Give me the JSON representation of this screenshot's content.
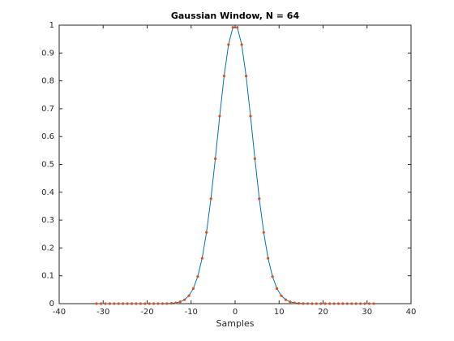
{
  "chart_data": {
    "type": "line",
    "title": "Gaussian Window, N = 64",
    "xlabel": "Samples",
    "x": [
      -31.5,
      -30.5,
      -29.5,
      -28.5,
      -27.5,
      -26.5,
      -25.5,
      -24.5,
      -23.5,
      -22.5,
      -21.5,
      -20.5,
      -19.5,
      -18.5,
      -17.5,
      -16.5,
      -15.5,
      -14.5,
      -13.5,
      -12.5,
      -11.5,
      -10.5,
      -9.5,
      -8.5,
      -7.5,
      -6.5,
      -5.5,
      -4.5,
      -3.5,
      -2.5,
      -1.5,
      -0.5,
      0.5,
      1.5,
      2.5,
      3.5,
      4.5,
      5.5,
      6.5,
      7.5,
      8.5,
      9.5,
      10.5,
      11.5,
      12.5,
      13.5,
      14.5,
      15.5,
      16.5,
      17.5,
      18.5,
      19.5,
      20.5,
      21.5,
      22.5,
      23.5,
      24.5,
      25.5,
      26.5,
      27.5,
      28.5,
      29.5,
      30.5,
      31.5
    ],
    "series": [
      {
        "color": "#0072bd",
        "marker_color": "#d95319",
        "values": [
          0,
          0,
          0,
          0,
          0,
          0,
          0,
          0,
          0,
          0,
          0,
          0,
          0,
          0,
          0.0001,
          0.0002,
          0.0004,
          0.0011,
          0.0028,
          0.0065,
          0.0141,
          0.0286,
          0.0544,
          0.0973,
          0.163,
          0.256,
          0.377,
          0.5204,
          0.6736,
          0.8174,
          0.93,
          0.992,
          0.992,
          0.93,
          0.8174,
          0.6736,
          0.5204,
          0.377,
          0.256,
          0.163,
          0.0973,
          0.0544,
          0.0286,
          0.0141,
          0.0065,
          0.0028,
          0.0011,
          0.0004,
          0.0002,
          0.0001,
          0,
          0,
          0,
          0,
          0,
          0,
          0,
          0,
          0,
          0,
          0,
          0,
          0,
          0
        ]
      }
    ],
    "xlim": [
      -40,
      40
    ],
    "xticks": [
      -40,
      -30,
      -20,
      -10,
      0,
      10,
      20,
      30,
      40
    ],
    "ylim": [
      0,
      1
    ],
    "yticks": [
      0,
      0.1,
      0.2,
      0.3,
      0.4,
      0.5,
      0.6,
      0.7,
      0.8,
      0.9,
      1
    ],
    "grid": false
  }
}
